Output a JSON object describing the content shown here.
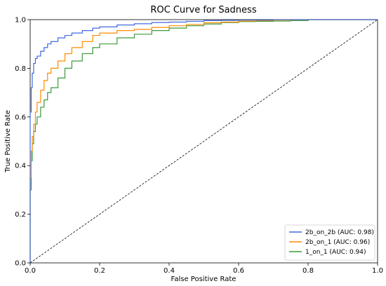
{
  "chart_data": {
    "type": "line",
    "title": "ROC Curve for Sadness",
    "xlabel": "False Positive Rate",
    "ylabel": "True Positive Rate",
    "xlim": [
      0.0,
      1.0
    ],
    "ylim": [
      0.0,
      1.0
    ],
    "xticks": [
      "0.0",
      "0.2",
      "0.4",
      "0.6",
      "0.8",
      "1.0"
    ],
    "yticks": [
      "0.0",
      "0.2",
      "0.4",
      "0.6",
      "0.8",
      "1.0"
    ],
    "grid": false,
    "legend_position": "lower-right",
    "series": [
      {
        "name": "2b_on_2b (AUC: 0.98)",
        "color": "#4169e1",
        "x": [
          0.0,
          0.0,
          0.003,
          0.006,
          0.01,
          0.015,
          0.02,
          0.03,
          0.04,
          0.05,
          0.06,
          0.08,
          0.1,
          0.12,
          0.15,
          0.18,
          0.2,
          0.25,
          0.3,
          0.35,
          0.4,
          0.45,
          0.5,
          0.55,
          0.6,
          0.65,
          0.7,
          0.75,
          0.8,
          0.9,
          1.0
        ],
        "y": [
          0.0,
          0.62,
          0.72,
          0.78,
          0.82,
          0.84,
          0.85,
          0.87,
          0.885,
          0.9,
          0.91,
          0.925,
          0.935,
          0.945,
          0.955,
          0.965,
          0.97,
          0.978,
          0.983,
          0.988,
          0.99,
          0.993,
          0.996,
          0.997,
          0.998,
          0.998,
          1.0,
          1.0,
          1.0,
          1.0,
          1.0
        ]
      },
      {
        "name": "2b_on_1 (AUC: 0.96)",
        "color": "#ff8c00",
        "x": [
          0.0,
          0.0,
          0.003,
          0.006,
          0.01,
          0.015,
          0.02,
          0.03,
          0.04,
          0.05,
          0.06,
          0.08,
          0.1,
          0.12,
          0.15,
          0.18,
          0.2,
          0.25,
          0.3,
          0.35,
          0.4,
          0.45,
          0.5,
          0.55,
          0.6,
          0.65,
          0.7,
          0.75,
          0.8,
          0.9,
          1.0
        ],
        "y": [
          0.0,
          0.35,
          0.46,
          0.52,
          0.57,
          0.62,
          0.66,
          0.71,
          0.75,
          0.78,
          0.8,
          0.83,
          0.86,
          0.885,
          0.91,
          0.935,
          0.945,
          0.955,
          0.96,
          0.968,
          0.975,
          0.98,
          0.987,
          0.99,
          0.994,
          0.996,
          0.998,
          1.0,
          1.0,
          1.0,
          1.0
        ]
      },
      {
        "name": "1_on_1 (AUC: 0.94)",
        "color": "#3a9a3a",
        "x": [
          0.0,
          0.0,
          0.003,
          0.006,
          0.01,
          0.015,
          0.02,
          0.03,
          0.04,
          0.05,
          0.06,
          0.08,
          0.1,
          0.12,
          0.15,
          0.18,
          0.2,
          0.25,
          0.3,
          0.35,
          0.4,
          0.45,
          0.5,
          0.55,
          0.6,
          0.65,
          0.7,
          0.75,
          0.8,
          0.9,
          1.0
        ],
        "y": [
          0.0,
          0.3,
          0.42,
          0.49,
          0.54,
          0.57,
          0.6,
          0.64,
          0.67,
          0.7,
          0.72,
          0.76,
          0.8,
          0.83,
          0.86,
          0.885,
          0.9,
          0.925,
          0.94,
          0.955,
          0.965,
          0.975,
          0.982,
          0.988,
          0.992,
          0.993,
          0.994,
          0.996,
          1.0,
          1.0,
          1.0
        ]
      }
    ],
    "reference_line": {
      "x": [
        0.0,
        1.0
      ],
      "y": [
        0.0,
        1.0
      ],
      "color": "#000000",
      "style": "dashed"
    }
  }
}
